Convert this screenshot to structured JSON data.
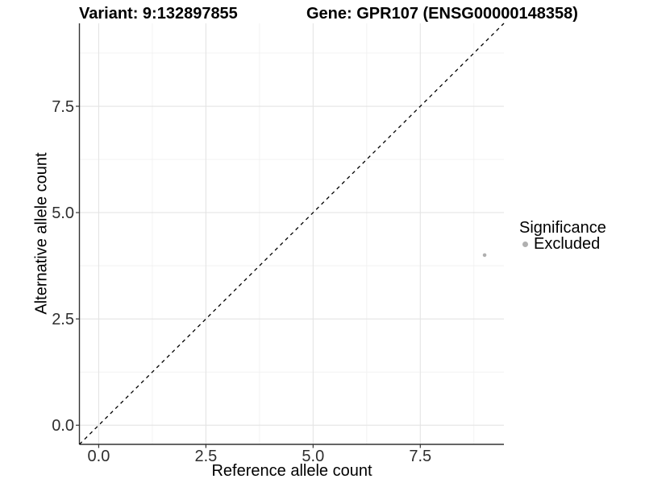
{
  "chart_data": {
    "type": "scatter",
    "title_left": "Variant: 9:132897855",
    "title_right": "Gene: GPR107 (ENSG00000148358)",
    "xlabel": "Reference allele count",
    "ylabel": "Alternative allele count",
    "xlim": [
      -0.45,
      9.45
    ],
    "ylim": [
      -0.45,
      9.45
    ],
    "x_major_ticks": [
      0,
      2.5,
      5,
      7.5
    ],
    "y_major_ticks": [
      0,
      2.5,
      5,
      7.5
    ],
    "x_minor_gridlines": [
      1.25,
      3.75,
      6.25,
      8.75
    ],
    "y_minor_gridlines": [
      1.25,
      3.75,
      6.25,
      8.75
    ],
    "tick_decimals": 1,
    "grid": true,
    "points": [
      {
        "x": 9,
        "y": 4,
        "series": "Excluded"
      }
    ],
    "reference_line": {
      "slope": 1,
      "intercept": 0,
      "style": "dashed",
      "color": "#000000"
    },
    "legend": {
      "position": "right",
      "title": "Significance",
      "entries": [
        {
          "label": "Excluded",
          "color": "#b0b0b0"
        }
      ]
    },
    "colors": {
      "point": "#b0b0b0",
      "grid_major": "#e4e4e4",
      "grid_minor": "#f1f1f1",
      "axis_line": "#333333",
      "tick_mark": "#333333",
      "tick_text": "#2e2e2e",
      "background": "#ffffff"
    }
  }
}
